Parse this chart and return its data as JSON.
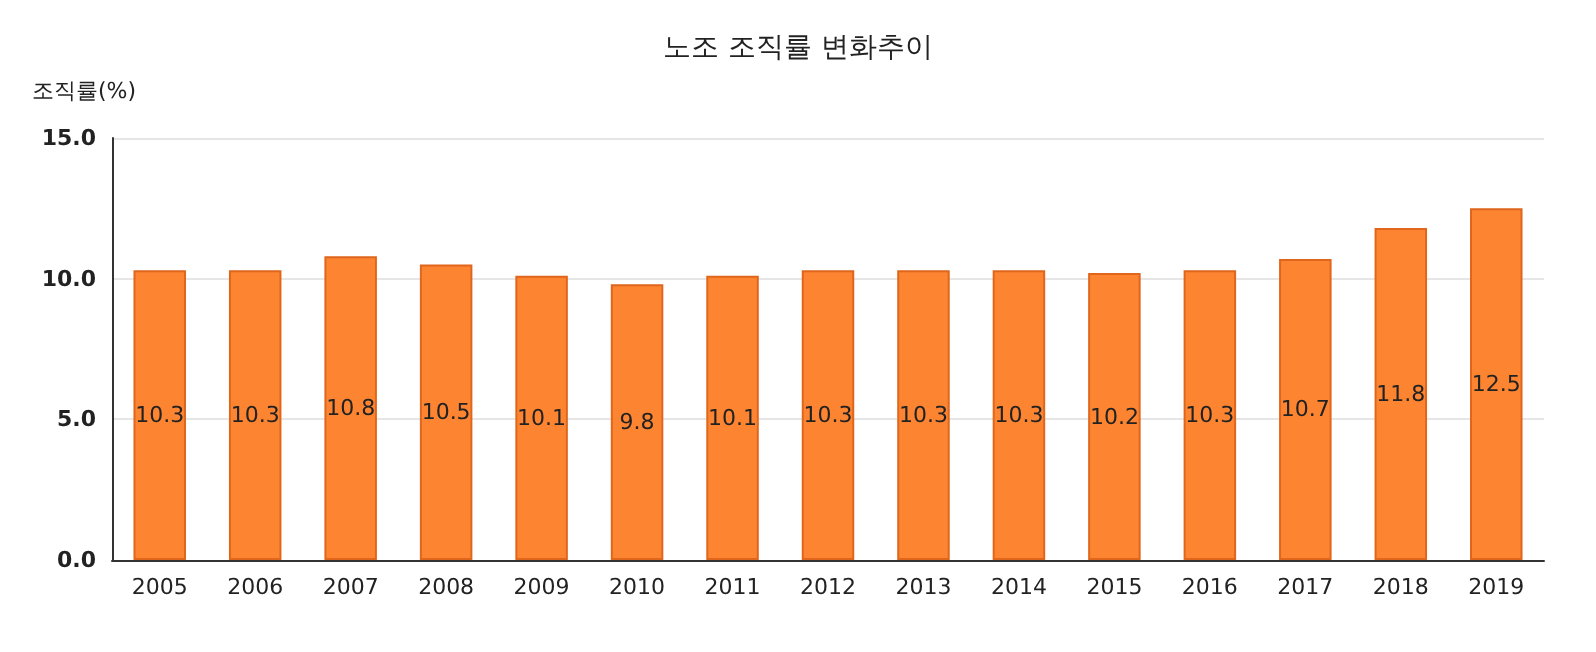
{
  "chart_data": {
    "type": "bar",
    "title": "노조 조직률 변화추이",
    "ylabel": "조직률(%)",
    "categories": [
      "2005",
      "2006",
      "2007",
      "2008",
      "2009",
      "2010",
      "2011",
      "2012",
      "2013",
      "2014",
      "2015",
      "2016",
      "2017",
      "2018",
      "2019"
    ],
    "values": [
      10.3,
      10.3,
      10.8,
      10.5,
      10.1,
      9.8,
      10.1,
      10.3,
      10.3,
      10.3,
      10.2,
      10.3,
      10.7,
      11.8,
      12.5
    ],
    "color": "#fd8532",
    "ylim": [
      0,
      15
    ],
    "yticks": [
      {
        "value": 0,
        "label": "0.0"
      },
      {
        "value": 5,
        "label": "5.0"
      },
      {
        "value": 10,
        "label": "10.0"
      },
      {
        "value": 15,
        "label": "15.0"
      }
    ],
    "grid": "y",
    "data_labels": true
  }
}
